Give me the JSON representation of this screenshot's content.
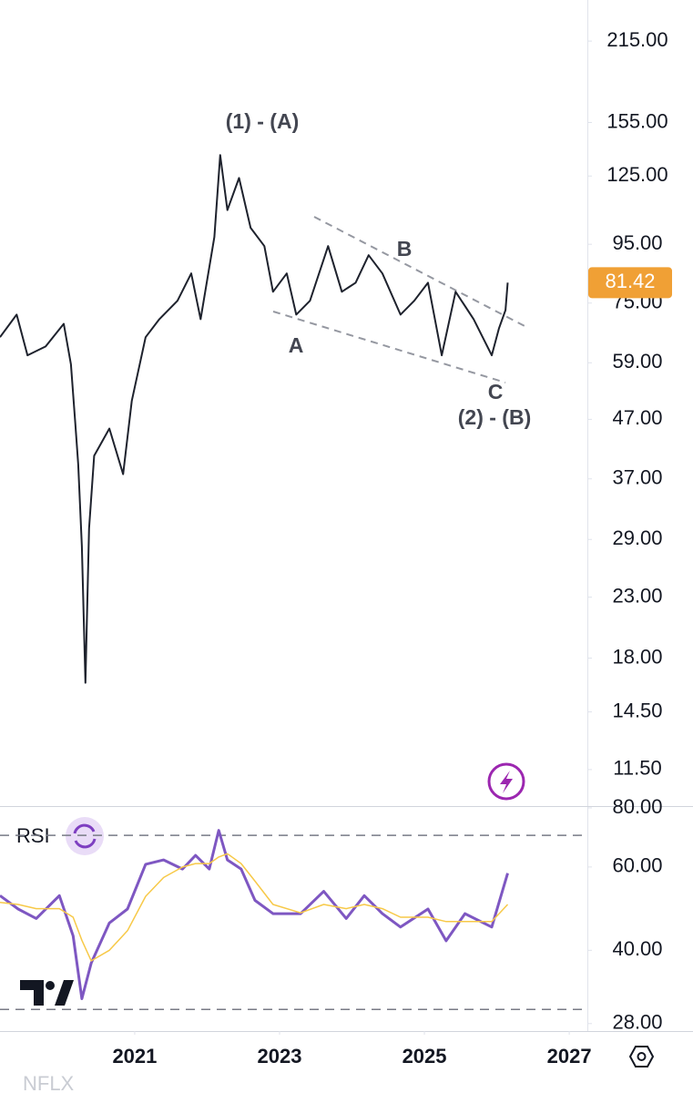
{
  "chart_data": [
    {
      "type": "line",
      "symbol": "NFLX",
      "log": true,
      "xlim": [
        2019.14,
        2027.25
      ],
      "xticks": [
        2021,
        2023,
        2025,
        2027
      ],
      "ylim": [
        9.93,
        253.6
      ],
      "yticks": [
        {
          "value": 215,
          "label": "215.00"
        },
        {
          "value": 155,
          "label": "155.00"
        },
        {
          "value": 125,
          "label": "125.00"
        },
        {
          "value": 95,
          "label": "95.00"
        },
        {
          "value": 75,
          "label": "75.00"
        },
        {
          "value": 59,
          "label": "59.00"
        },
        {
          "value": 47,
          "label": "47.00"
        },
        {
          "value": 37,
          "label": "37.00"
        },
        {
          "value": 29,
          "label": "29.00"
        },
        {
          "value": 23,
          "label": "23.00"
        },
        {
          "value": 18,
          "label": "18.00"
        },
        {
          "value": 14.5,
          "label": "14.50"
        },
        {
          "value": 11.5,
          "label": "11.50"
        }
      ],
      "last_price": 81.42,
      "annotations": [
        "(1) - (A)",
        "A",
        "B",
        "C",
        "(2) - (B)"
      ],
      "x": [
        2019.14,
        2019.37,
        2019.52,
        2019.77,
        2020.02,
        2020.12,
        2020.18,
        2020.22,
        2020.27,
        2020.32,
        2020.37,
        2020.44,
        2020.65,
        2020.84,
        2020.96,
        2021.15,
        2021.34,
        2021.59,
        2021.78,
        2021.91,
        2022.1,
        2022.18,
        2022.28,
        2022.44,
        2022.6,
        2022.79,
        2022.91,
        2023.1,
        2023.23,
        2023.42,
        2023.67,
        2023.86,
        2024.05,
        2024.23,
        2024.42,
        2024.67,
        2024.86,
        2025.05,
        2025.24,
        2025.43,
        2025.68,
        2025.93,
        2026.03,
        2026.12,
        2026.15
      ],
      "series": [
        {
          "color": "#1e222d",
          "values": [
            65.4,
            71.6,
            60.8,
            63.0,
            69.0,
            58.6,
            46.2,
            39.2,
            28.2,
            16.3,
            30.3,
            40.6,
            45.3,
            37.7,
            50.6,
            65.4,
            70.3,
            75.7,
            84.5,
            70.3,
            97.8,
            136,
            109,
            124,
            101.5,
            94.3,
            78.5,
            84.5,
            71.6,
            75.7,
            94.3,
            78.5,
            81.4,
            90.9,
            84.5,
            71.6,
            75.7,
            81.4,
            60.8,
            78.5,
            70.3,
            60.8,
            67.8,
            72.9,
            81.42
          ]
        }
      ]
    },
    {
      "type": "line",
      "log": true,
      "xlim": [
        2019.14,
        2027.25
      ],
      "ylim": [
        27,
        80.7
      ],
      "yticks": [
        {
          "value": 80,
          "label": "80.00"
        },
        {
          "value": 60,
          "label": "60.00"
        },
        {
          "value": 40,
          "label": "40.00"
        },
        {
          "value": 28,
          "label": "28.00"
        }
      ],
      "levels": [
        70,
        30
      ],
      "x": [
        2019.14,
        2019.39,
        2019.64,
        2019.96,
        2020.15,
        2020.27,
        2020.4,
        2020.65,
        2020.9,
        2021.15,
        2021.4,
        2021.66,
        2021.84,
        2022.03,
        2022.16,
        2022.28,
        2022.47,
        2022.66,
        2022.91,
        2023.29,
        2023.61,
        2023.92,
        2024.17,
        2024.42,
        2024.67,
        2025.05,
        2025.3,
        2025.56,
        2025.93,
        2026.15
      ],
      "series": [
        {
          "name": "RSI",
          "color": "#7e57c2",
          "values": [
            52.2,
            48.9,
            46.7,
            52.2,
            42.9,
            31.6,
            37.6,
            45.7,
            48.9,
            60.8,
            62.1,
            59.4,
            63.5,
            59.4,
            71.7,
            62.1,
            59.4,
            51.0,
            47.8,
            47.8,
            53.3,
            46.7,
            52.2,
            47.8,
            44.8,
            48.9,
            41.9,
            47.8,
            44.8,
            58.2
          ]
        },
        {
          "color": "#f7c948",
          "values": [
            50.5,
            50,
            49,
            49,
            47,
            42,
            38,
            40,
            44,
            52,
            57,
            60,
            61,
            61,
            63,
            64,
            61,
            56,
            50,
            48,
            50,
            49,
            50,
            49,
            47,
            47,
            46,
            46,
            46,
            50
          ]
        }
      ]
    }
  ]
}
